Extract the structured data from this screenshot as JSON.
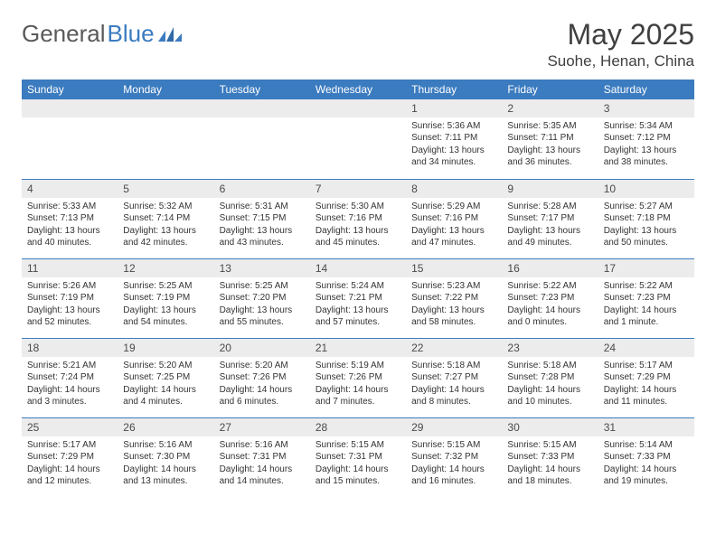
{
  "brand": {
    "part1": "General",
    "part2": "Blue"
  },
  "title": "May 2025",
  "location": "Suohe, Henan, China",
  "colors": {
    "header_bg": "#3b7bbf",
    "header_text": "#ffffff",
    "daynum_bg": "#ececec",
    "title_color": "#404040",
    "cell_text": "#333333",
    "row_divider": "#3b7bbf"
  },
  "weekdays": [
    "Sunday",
    "Monday",
    "Tuesday",
    "Wednesday",
    "Thursday",
    "Friday",
    "Saturday"
  ],
  "first_weekday_index": 4,
  "days": [
    {
      "n": 1,
      "sr": "5:36 AM",
      "ss": "7:11 PM",
      "dl": "13 hours and 34 minutes."
    },
    {
      "n": 2,
      "sr": "5:35 AM",
      "ss": "7:11 PM",
      "dl": "13 hours and 36 minutes."
    },
    {
      "n": 3,
      "sr": "5:34 AM",
      "ss": "7:12 PM",
      "dl": "13 hours and 38 minutes."
    },
    {
      "n": 4,
      "sr": "5:33 AM",
      "ss": "7:13 PM",
      "dl": "13 hours and 40 minutes."
    },
    {
      "n": 5,
      "sr": "5:32 AM",
      "ss": "7:14 PM",
      "dl": "13 hours and 42 minutes."
    },
    {
      "n": 6,
      "sr": "5:31 AM",
      "ss": "7:15 PM",
      "dl": "13 hours and 43 minutes."
    },
    {
      "n": 7,
      "sr": "5:30 AM",
      "ss": "7:16 PM",
      "dl": "13 hours and 45 minutes."
    },
    {
      "n": 8,
      "sr": "5:29 AM",
      "ss": "7:16 PM",
      "dl": "13 hours and 47 minutes."
    },
    {
      "n": 9,
      "sr": "5:28 AM",
      "ss": "7:17 PM",
      "dl": "13 hours and 49 minutes."
    },
    {
      "n": 10,
      "sr": "5:27 AM",
      "ss": "7:18 PM",
      "dl": "13 hours and 50 minutes."
    },
    {
      "n": 11,
      "sr": "5:26 AM",
      "ss": "7:19 PM",
      "dl": "13 hours and 52 minutes."
    },
    {
      "n": 12,
      "sr": "5:25 AM",
      "ss": "7:19 PM",
      "dl": "13 hours and 54 minutes."
    },
    {
      "n": 13,
      "sr": "5:25 AM",
      "ss": "7:20 PM",
      "dl": "13 hours and 55 minutes."
    },
    {
      "n": 14,
      "sr": "5:24 AM",
      "ss": "7:21 PM",
      "dl": "13 hours and 57 minutes."
    },
    {
      "n": 15,
      "sr": "5:23 AM",
      "ss": "7:22 PM",
      "dl": "13 hours and 58 minutes."
    },
    {
      "n": 16,
      "sr": "5:22 AM",
      "ss": "7:23 PM",
      "dl": "14 hours and 0 minutes."
    },
    {
      "n": 17,
      "sr": "5:22 AM",
      "ss": "7:23 PM",
      "dl": "14 hours and 1 minute."
    },
    {
      "n": 18,
      "sr": "5:21 AM",
      "ss": "7:24 PM",
      "dl": "14 hours and 3 minutes."
    },
    {
      "n": 19,
      "sr": "5:20 AM",
      "ss": "7:25 PM",
      "dl": "14 hours and 4 minutes."
    },
    {
      "n": 20,
      "sr": "5:20 AM",
      "ss": "7:26 PM",
      "dl": "14 hours and 6 minutes."
    },
    {
      "n": 21,
      "sr": "5:19 AM",
      "ss": "7:26 PM",
      "dl": "14 hours and 7 minutes."
    },
    {
      "n": 22,
      "sr": "5:18 AM",
      "ss": "7:27 PM",
      "dl": "14 hours and 8 minutes."
    },
    {
      "n": 23,
      "sr": "5:18 AM",
      "ss": "7:28 PM",
      "dl": "14 hours and 10 minutes."
    },
    {
      "n": 24,
      "sr": "5:17 AM",
      "ss": "7:29 PM",
      "dl": "14 hours and 11 minutes."
    },
    {
      "n": 25,
      "sr": "5:17 AM",
      "ss": "7:29 PM",
      "dl": "14 hours and 12 minutes."
    },
    {
      "n": 26,
      "sr": "5:16 AM",
      "ss": "7:30 PM",
      "dl": "14 hours and 13 minutes."
    },
    {
      "n": 27,
      "sr": "5:16 AM",
      "ss": "7:31 PM",
      "dl": "14 hours and 14 minutes."
    },
    {
      "n": 28,
      "sr": "5:15 AM",
      "ss": "7:31 PM",
      "dl": "14 hours and 15 minutes."
    },
    {
      "n": 29,
      "sr": "5:15 AM",
      "ss": "7:32 PM",
      "dl": "14 hours and 16 minutes."
    },
    {
      "n": 30,
      "sr": "5:15 AM",
      "ss": "7:33 PM",
      "dl": "14 hours and 18 minutes."
    },
    {
      "n": 31,
      "sr": "5:14 AM",
      "ss": "7:33 PM",
      "dl": "14 hours and 19 minutes."
    }
  ],
  "labels": {
    "sunrise": "Sunrise:",
    "sunset": "Sunset:",
    "daylight": "Daylight:"
  }
}
